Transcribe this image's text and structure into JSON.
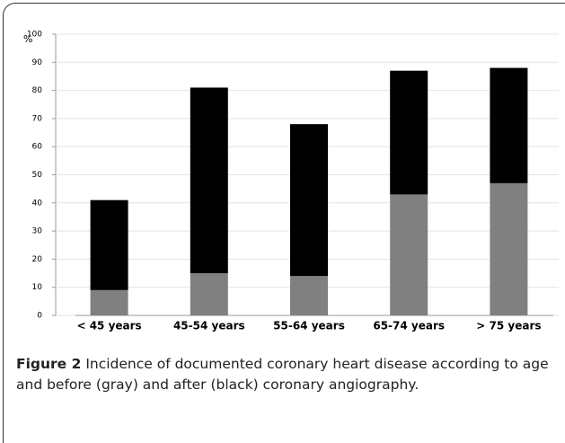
{
  "chart_data": {
    "type": "stacked-bar",
    "y_label": "%",
    "categories": [
      "< 45 years",
      "45-54 years",
      "55-64 years",
      "65-74 years",
      "> 75 years"
    ],
    "series": [
      {
        "color": "#808080",
        "values": [
          9,
          15,
          14,
          43,
          47
        ]
      },
      {
        "color": "#000000",
        "values": [
          32,
          66,
          54,
          44,
          41
        ]
      }
    ],
    "ylim": [
      0,
      100
    ],
    "yticks": [
      0,
      10,
      20,
      30,
      40,
      50,
      60,
      70,
      80,
      90,
      100
    ],
    "grid": true
  },
  "caption": {
    "label": "Figure 2",
    "text": "Incidence of documented coronary heart disease according to age and before (gray) and after (black) coronary angiography."
  }
}
